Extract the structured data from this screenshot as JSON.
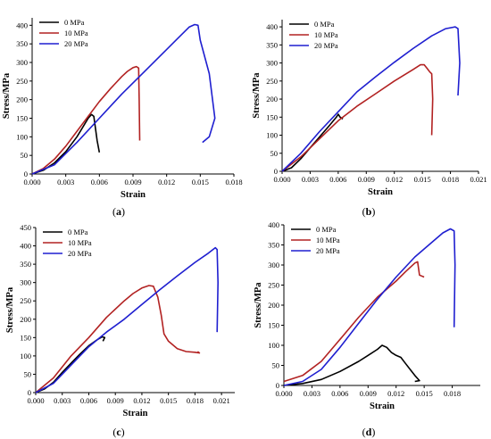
{
  "chart_data": [
    {
      "id": "a",
      "type": "line",
      "caption_letter": "a",
      "xlabel": "Strain",
      "ylabel": "Stress/MPa",
      "xlim": [
        0.0,
        0.018
      ],
      "ylim": [
        0,
        420
      ],
      "xticks": [
        "0.000",
        "0.003",
        "0.006",
        "0.009",
        "0.012",
        "0.015",
        "0.018"
      ],
      "yticks": [
        "0",
        "50",
        "100",
        "150",
        "200",
        "250",
        "300",
        "350",
        "400"
      ],
      "legend": "top-left",
      "series": [
        {
          "name": "0 MPa",
          "color": "#000000",
          "x": [
            0.0,
            0.001,
            0.002,
            0.003,
            0.004,
            0.0045,
            0.005,
            0.0053,
            0.0055,
            0.0058,
            0.006
          ],
          "y": [
            0,
            10,
            30,
            60,
            100,
            125,
            150,
            160,
            155,
            90,
            58
          ]
        },
        {
          "name": "10 MPa",
          "color": "#b22222",
          "x": [
            0.0,
            0.001,
            0.002,
            0.003,
            0.004,
            0.005,
            0.006,
            0.007,
            0.008,
            0.0085,
            0.009,
            0.0093,
            0.0095,
            0.00955,
            0.0096
          ],
          "y": [
            0,
            15,
            40,
            75,
            115,
            155,
            195,
            230,
            262,
            276,
            286,
            289,
            285,
            200,
            90
          ]
        },
        {
          "name": "20 MPa",
          "color": "#1f1fd0",
          "x": [
            0.0,
            0.002,
            0.004,
            0.006,
            0.008,
            0.01,
            0.012,
            0.013,
            0.014,
            0.0145,
            0.0148,
            0.015,
            0.0158,
            0.0163,
            0.0158,
            0.0152
          ],
          "y": [
            0,
            25,
            85,
            150,
            215,
            275,
            335,
            365,
            395,
            402,
            400,
            360,
            270,
            150,
            100,
            85
          ]
        }
      ]
    },
    {
      "id": "b",
      "type": "line",
      "caption_letter": "b",
      "xlabel": "Strain",
      "ylabel": "Stress/MPa",
      "xlim": [
        0.0,
        0.021
      ],
      "ylim": [
        0,
        420
      ],
      "xticks": [
        "0.000",
        "0.003",
        "0.006",
        "0.009",
        "0.012",
        "0.015",
        "0.018",
        "0.021"
      ],
      "yticks": [
        "0",
        "50",
        "100",
        "150",
        "200",
        "250",
        "300",
        "350",
        "400"
      ],
      "legend": "top-left",
      "series": [
        {
          "name": "0 MPa",
          "color": "#000000",
          "x": [
            0.0,
            0.001,
            0.002,
            0.003,
            0.004,
            0.005,
            0.0058,
            0.006,
            0.0062,
            0.0065
          ],
          "y": [
            0,
            10,
            35,
            65,
            95,
            125,
            150,
            158,
            150,
            145
          ]
        },
        {
          "name": "10 MPa",
          "color": "#b22222",
          "x": [
            0.0,
            0.002,
            0.004,
            0.006,
            0.008,
            0.01,
            0.012,
            0.014,
            0.0148,
            0.0152,
            0.0155,
            0.0158,
            0.016,
            0.0161,
            0.016
          ],
          "y": [
            0,
            40,
            90,
            140,
            180,
            215,
            250,
            282,
            295,
            295,
            285,
            275,
            270,
            200,
            100
          ]
        },
        {
          "name": "20 MPa",
          "color": "#1f1fd0",
          "x": [
            0.0,
            0.002,
            0.004,
            0.006,
            0.008,
            0.01,
            0.012,
            0.014,
            0.016,
            0.0175,
            0.0185,
            0.0188,
            0.019,
            0.0188
          ],
          "y": [
            0,
            50,
            110,
            165,
            220,
            262,
            302,
            340,
            375,
            395,
            400,
            395,
            300,
            210
          ]
        }
      ]
    },
    {
      "id": "c",
      "type": "line",
      "caption_letter": "c",
      "xlabel": "Strain",
      "ylabel": "Stress/MPa",
      "xlim": [
        0.0,
        0.0225
      ],
      "ylim": [
        0,
        450
      ],
      "xticks": [
        "0.000",
        "0.003",
        "0.006",
        "0.009",
        "0.012",
        "0.015",
        "0.018",
        "0.021"
      ],
      "yticks": [
        "0",
        "50",
        "100",
        "150",
        "200",
        "250",
        "300",
        "350",
        "400",
        "450"
      ],
      "legend": "top-left",
      "series": [
        {
          "name": "0 MPa",
          "color": "#000000",
          "x": [
            0.0,
            0.001,
            0.002,
            0.003,
            0.004,
            0.005,
            0.006,
            0.007,
            0.0075,
            0.0078,
            0.0076
          ],
          "y": [
            0,
            10,
            28,
            55,
            80,
            105,
            128,
            145,
            152,
            150,
            140
          ]
        },
        {
          "name": "10 MPa",
          "color": "#b22222",
          "x": [
            0.0,
            0.002,
            0.004,
            0.006,
            0.008,
            0.01,
            0.011,
            0.012,
            0.0128,
            0.0133,
            0.0138,
            0.0142,
            0.0145,
            0.015,
            0.016,
            0.017,
            0.018,
            0.0185,
            0.0183
          ],
          "y": [
            0,
            40,
            100,
            150,
            205,
            250,
            270,
            285,
            292,
            290,
            260,
            210,
            160,
            140,
            120,
            112,
            110,
            108,
            112
          ]
        },
        {
          "name": "20 MPa",
          "color": "#1f1fd0",
          "x": [
            0.0,
            0.002,
            0.004,
            0.006,
            0.008,
            0.01,
            0.012,
            0.014,
            0.016,
            0.018,
            0.0195,
            0.0203,
            0.0205,
            0.0206,
            0.0205
          ],
          "y": [
            0,
            25,
            75,
            125,
            165,
            200,
            240,
            280,
            318,
            355,
            380,
            395,
            390,
            300,
            165
          ]
        }
      ]
    },
    {
      "id": "d",
      "type": "line",
      "caption_letter": "d",
      "xlabel": "Strain",
      "ylabel": "Stress/MPa",
      "xlim": [
        0.0,
        0.021
      ],
      "ylim": [
        0,
        400
      ],
      "xticks": [
        "0.000",
        "0.003",
        "0.006",
        "0.009",
        "0.012",
        "0.015",
        "0.018"
      ],
      "yticks": [
        "0",
        "50",
        "100",
        "150",
        "200",
        "250",
        "300",
        "350",
        "400"
      ],
      "legend": "top-left",
      "series": [
        {
          "name": "0 MPa",
          "color": "#000000",
          "x": [
            0.0,
            0.002,
            0.004,
            0.006,
            0.008,
            0.009,
            0.01,
            0.0105,
            0.011,
            0.0115,
            0.012,
            0.0125,
            0.013,
            0.0135,
            0.014,
            0.0145,
            0.014
          ],
          "y": [
            0,
            5,
            15,
            35,
            60,
            75,
            90,
            100,
            95,
            82,
            75,
            70,
            55,
            40,
            25,
            12,
            10
          ]
        },
        {
          "name": "10 MPa",
          "color": "#b22222",
          "x": [
            0.0,
            0.002,
            0.004,
            0.006,
            0.008,
            0.01,
            0.012,
            0.013,
            0.014,
            0.0143,
            0.0145,
            0.015
          ],
          "y": [
            10,
            25,
            60,
            115,
            170,
            220,
            260,
            283,
            305,
            308,
            275,
            270
          ]
        },
        {
          "name": "20 MPa",
          "color": "#1f1fd0",
          "x": [
            0.0,
            0.002,
            0.004,
            0.006,
            0.008,
            0.01,
            0.012,
            0.014,
            0.016,
            0.017,
            0.0178,
            0.0182,
            0.0183,
            0.0182
          ],
          "y": [
            0,
            10,
            40,
            95,
            155,
            215,
            270,
            320,
            360,
            380,
            390,
            385,
            300,
            145
          ]
        }
      ]
    }
  ]
}
